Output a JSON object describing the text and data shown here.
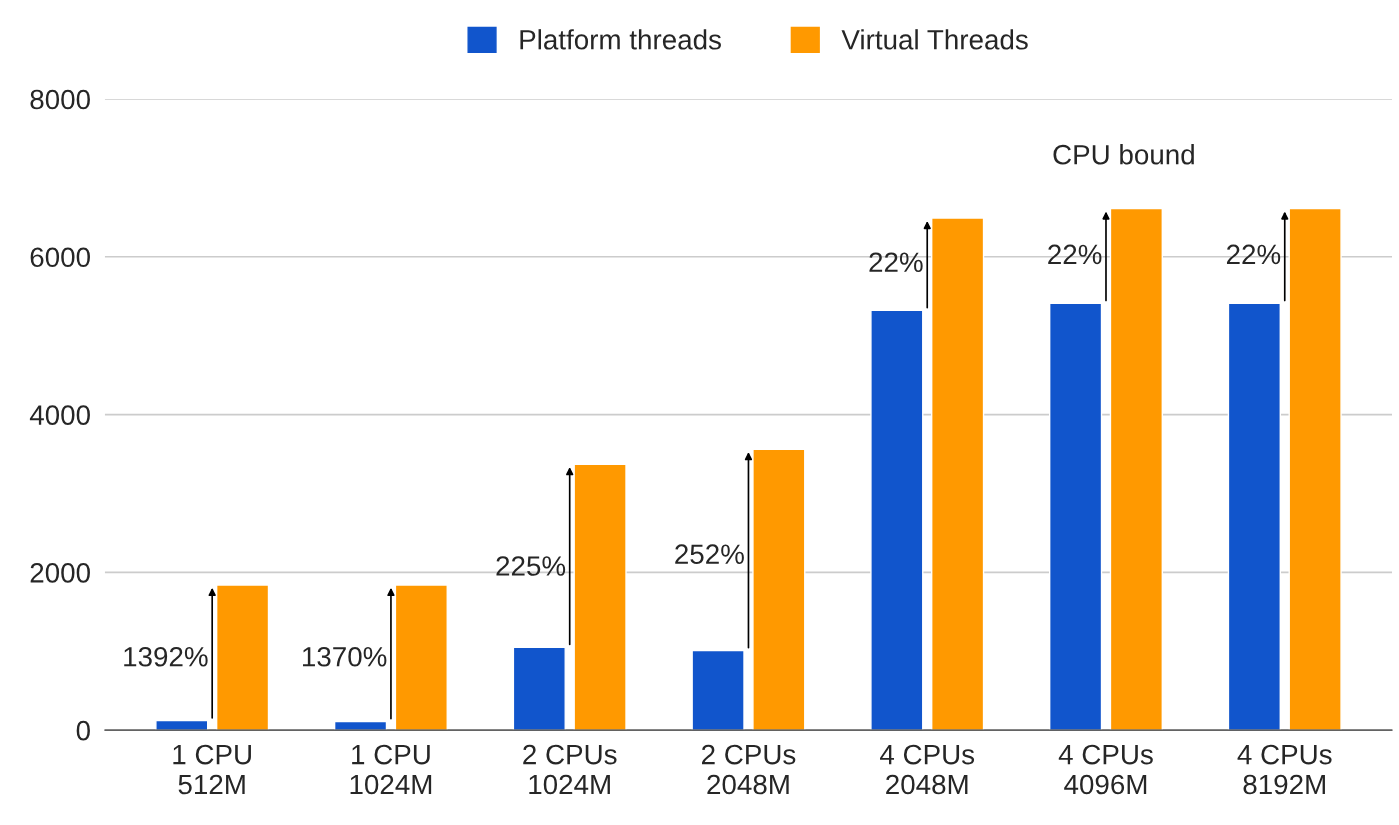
{
  "chart_data": {
    "type": "bar",
    "categories": [
      "1 CPU\n512M",
      "1 CPU\n1024M",
      "2 CPUs\n1024M",
      "2 CPUs\n2048M",
      "4 CPUs\n2048M",
      "4 CPUs\n4096M",
      "4 CPUs\n8192M"
    ],
    "series": [
      {
        "name": "Platform threads",
        "color": "#1155cc",
        "values": [
          120,
          110,
          1050,
          1010,
          5320,
          5410,
          5410
        ]
      },
      {
        "name": "Virtual Threads",
        "color": "#ff9900",
        "values": [
          1840,
          1840,
          3370,
          3560,
          6490,
          6610,
          6610
        ]
      }
    ],
    "ylim": [
      0,
      8000
    ],
    "yticks": [
      0,
      2000,
      4000,
      6000,
      8000
    ],
    "grid": "y",
    "legend": "top",
    "annotations": [
      {
        "text": "1392%",
        "x": "1 CPU\n512M",
        "y": 900
      },
      {
        "text": "1370%",
        "x": "1 CPU\n1024M",
        "y": 900
      },
      {
        "text": "225%",
        "x": "2 CPUs\n1024M",
        "y": 2050
      },
      {
        "text": "252%",
        "x": "2 CPUs\n2048M",
        "y": 2200
      },
      {
        "text": "22%",
        "x": "4 CPUs\n2048M",
        "y": 5900
      },
      {
        "text": "22%",
        "x": "4 CPUs\n4096M",
        "y": 6000
      },
      {
        "text": "22%",
        "x": "4 CPUs\n8192M",
        "y": 6000
      },
      "CPU bound"
    ]
  }
}
